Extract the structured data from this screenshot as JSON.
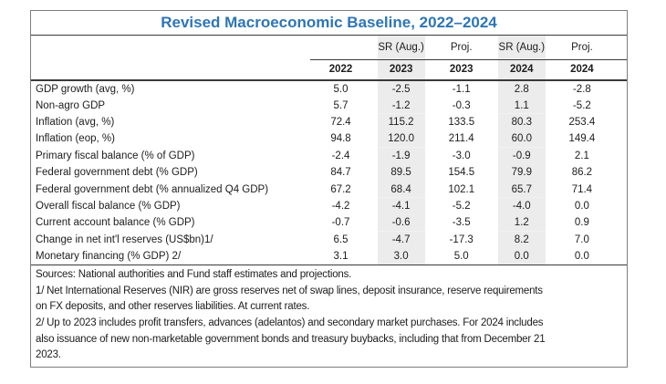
{
  "title": "Revised Macroeconomic Baseline, 2022–2024",
  "table": {
    "columns": [
      {
        "group": "",
        "year": "2022",
        "shaded": false
      },
      {
        "group": "SR (Aug.)",
        "year": "2023",
        "shaded": true
      },
      {
        "group": "Proj.",
        "year": "2023",
        "shaded": false
      },
      {
        "group": "SR (Aug.)",
        "year": "2024",
        "shaded": true
      },
      {
        "group": "Proj.",
        "year": "2024",
        "shaded": false
      }
    ],
    "rows": [
      {
        "label": "GDP growth (avg, %)",
        "values": [
          "5.0",
          "-2.5",
          "-1.1",
          "2.8",
          "-2.8"
        ]
      },
      {
        "label": "Non-agro GDP",
        "values": [
          "5.7",
          "-1.2",
          "-0.3",
          "1.1",
          "-5.2"
        ]
      },
      {
        "label": "Inflation (avg, %)",
        "values": [
          "72.4",
          "115.2",
          "133.5",
          "80.3",
          "253.4"
        ]
      },
      {
        "label": "Inflation (eop, %)",
        "values": [
          "94.8",
          "120.0",
          "211.4",
          "60.0",
          "149.4"
        ]
      },
      {
        "label": "Primary fiscal balance (% of GDP)",
        "values": [
          "-2.4",
          "-1.9",
          "-3.0",
          "-0.9",
          "2.1"
        ]
      },
      {
        "label": "Federal government debt (% GDP)",
        "values": [
          "84.7",
          "89.5",
          "154.5",
          "79.9",
          "86.2"
        ]
      },
      {
        "label": "Federal government debt (% annualized Q4 GDP)",
        "values": [
          "67.2",
          "68.4",
          "102.1",
          "65.7",
          "71.4"
        ]
      },
      {
        "label": "Overall fiscal balance (% GDP)",
        "values": [
          "-4.2",
          "-4.1",
          "-5.2",
          "-4.0",
          "0.0"
        ]
      },
      {
        "label": "Current account balance (% GDP)",
        "values": [
          "-0.7",
          "-0.6",
          "-3.5",
          "1.2",
          "0.9"
        ]
      },
      {
        "label": "Change in net int'l reserves (US$bn)1/",
        "values": [
          "6.5",
          "-4.7",
          "-17.3",
          "8.2",
          "7.0"
        ]
      },
      {
        "label": "Monetary financing (% GDP) 2/",
        "values": [
          "3.1",
          "3.0",
          "5.0",
          "0.0",
          "0.0"
        ]
      }
    ]
  },
  "notes": [
    {
      "lines": [
        "Sources: National authorities and Fund staff estimates and projections."
      ]
    },
    {
      "lines": [
        "1/ Net International Reserves (NIR) are gross reserves net of swap lines, deposit insurance, reserve requirements",
        "on FX deposits, and other reserves liabilities. At current rates."
      ]
    },
    {
      "lines": [
        "2/ Up to 2023 includes profit transfers, advances (adelantos) and secondary market purchases. For 2024 includes",
        "also issuance of new non-marketable government bonds and treasury buybacks, including that from December 21",
        "2023."
      ]
    }
  ],
  "colors": {
    "title_blue": "#2E75B6",
    "shaded_column": "#ECECEC",
    "outer_border": "#7D7D7D",
    "inner_rules": "#3A3A3A",
    "text": "#1C1C1C"
  }
}
